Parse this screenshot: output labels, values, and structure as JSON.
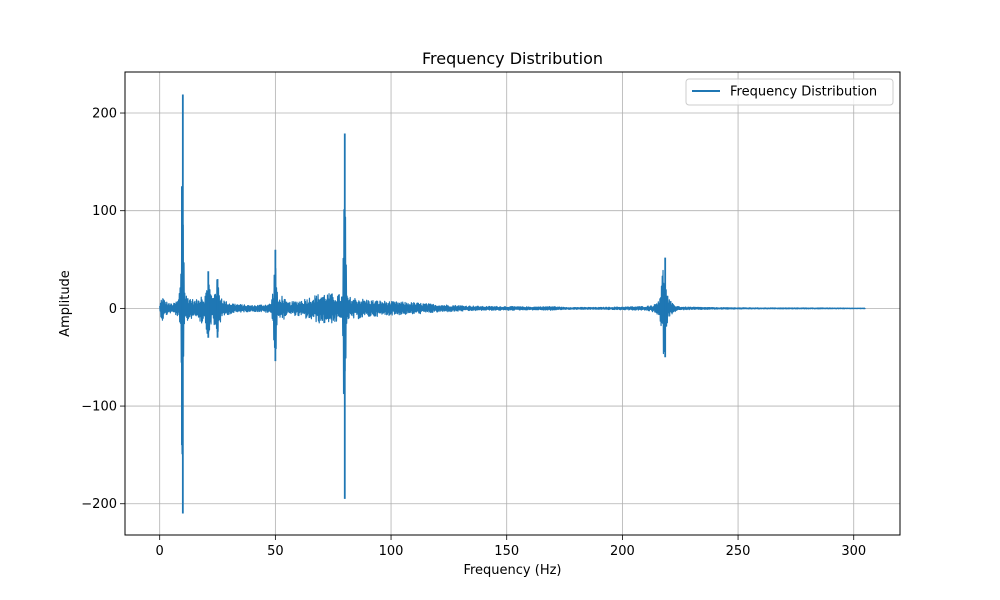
{
  "chart_data": {
    "type": "line",
    "title": "Frequency Distribution",
    "xlabel": "Frequency (Hz)",
    "ylabel": "Amplitude",
    "xlim": [
      -15,
      320
    ],
    "ylim": [
      -232,
      242
    ],
    "x_ticks": [
      0,
      50,
      100,
      150,
      200,
      250,
      300
    ],
    "y_ticks": [
      -200,
      -100,
      0,
      100,
      200
    ],
    "grid": true,
    "legend_position": "top-right",
    "series": [
      {
        "name": "Frequency Distribution",
        "color": "#1f77b4",
        "x_range": [
          0,
          305
        ],
        "envelope": [
          [
            0,
            3
          ],
          [
            1,
            14
          ],
          [
            2,
            9
          ],
          [
            4,
            5
          ],
          [
            6,
            5
          ],
          [
            8,
            9
          ],
          [
            9,
            30
          ],
          [
            10,
            219
          ],
          [
            10.5,
            60
          ],
          [
            11,
            15
          ],
          [
            13,
            12
          ],
          [
            15,
            8
          ],
          [
            17,
            10
          ],
          [
            18,
            18
          ],
          [
            19,
            10
          ],
          [
            20,
            18
          ],
          [
            21,
            38
          ],
          [
            22,
            18
          ],
          [
            23,
            12
          ],
          [
            24,
            28
          ],
          [
            25,
            30
          ],
          [
            26,
            16
          ],
          [
            28,
            8
          ],
          [
            30,
            6
          ],
          [
            35,
            4
          ],
          [
            40,
            3
          ],
          [
            45,
            4
          ],
          [
            48,
            5
          ],
          [
            49,
            20
          ],
          [
            50,
            60
          ],
          [
            51,
            8
          ],
          [
            53,
            14
          ],
          [
            55,
            6
          ],
          [
            60,
            8
          ],
          [
            65,
            12
          ],
          [
            70,
            16
          ],
          [
            75,
            15
          ],
          [
            79,
            14
          ],
          [
            80,
            179
          ],
          [
            81,
            12
          ],
          [
            85,
            11
          ],
          [
            90,
            9
          ],
          [
            100,
            7
          ],
          [
            110,
            6
          ],
          [
            120,
            4
          ],
          [
            130,
            3
          ],
          [
            140,
            2
          ],
          [
            150,
            2
          ],
          [
            160,
            1.5
          ],
          [
            170,
            2
          ],
          [
            175,
            1
          ],
          [
            180,
            1
          ],
          [
            190,
            1
          ],
          [
            200,
            1.5
          ],
          [
            210,
            2
          ],
          [
            214,
            4
          ],
          [
            216,
            12
          ],
          [
            218,
            52
          ],
          [
            219,
            20
          ],
          [
            220,
            10
          ],
          [
            222,
            4
          ],
          [
            225,
            1.5
          ],
          [
            240,
            0.8
          ],
          [
            260,
            0.5
          ],
          [
            280,
            0.5
          ],
          [
            305,
            0.3
          ]
        ],
        "spikes": [
          {
            "x": 10,
            "max": 219,
            "min": -210
          },
          {
            "x": 9.6,
            "max": 125,
            "min": -140
          },
          {
            "x": 50,
            "max": 60,
            "min": -54
          },
          {
            "x": 80,
            "max": 179,
            "min": -195
          },
          {
            "x": 218.5,
            "max": 52,
            "min": -50
          },
          {
            "x": 21,
            "max": 38,
            "min": -30
          },
          {
            "x": 25,
            "max": 30,
            "min": -30
          }
        ]
      }
    ]
  }
}
